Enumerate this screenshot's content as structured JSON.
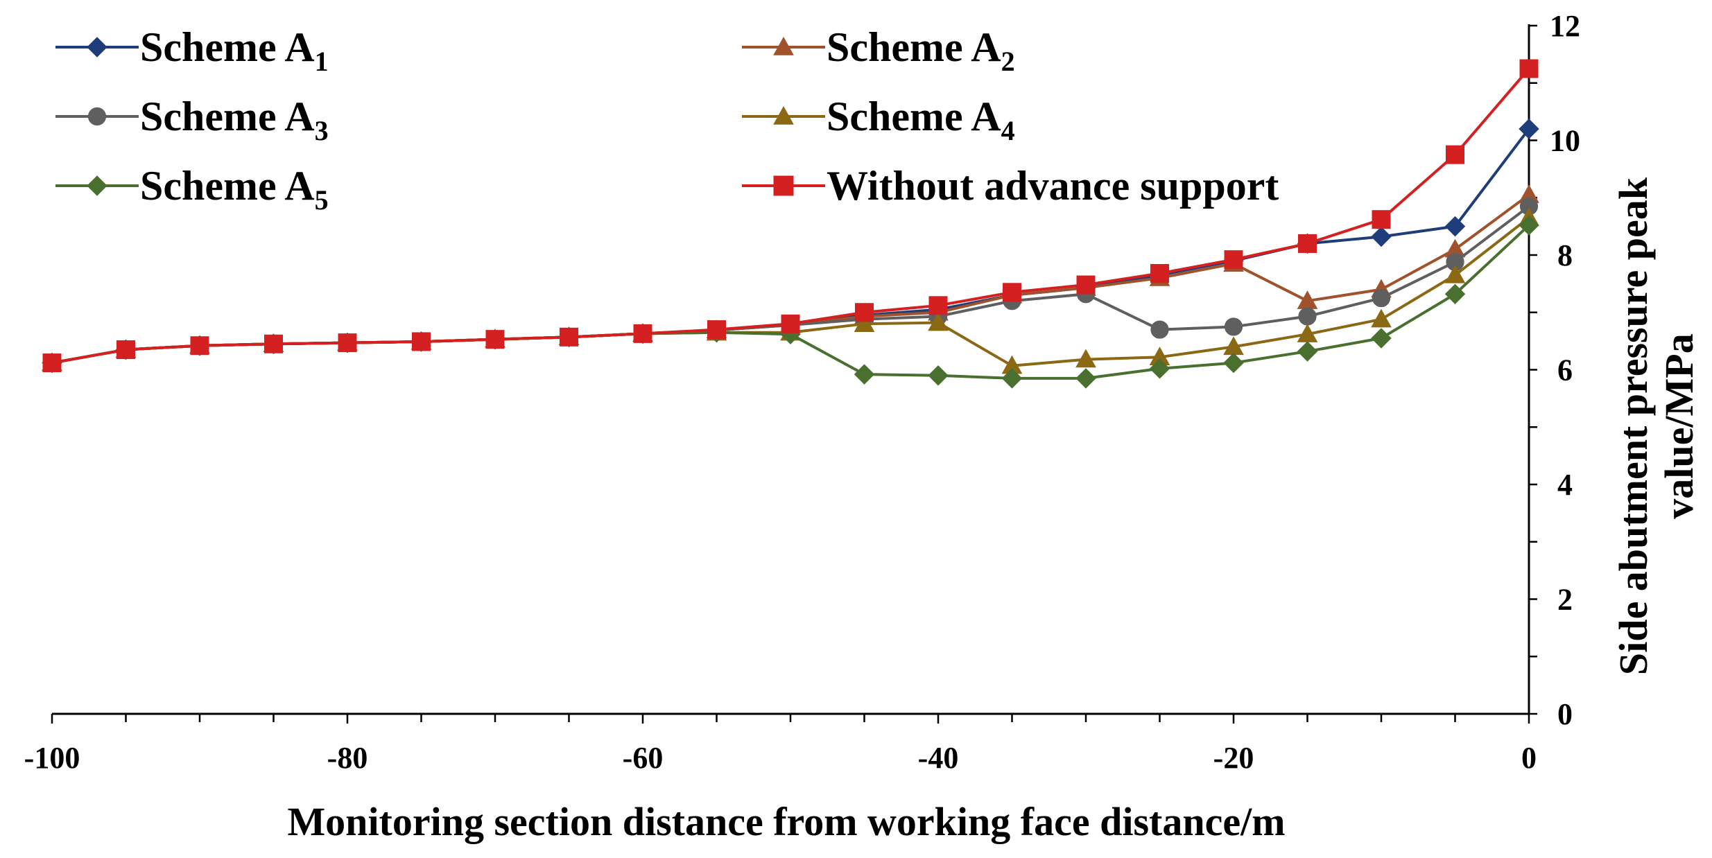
{
  "chart_data": {
    "type": "line",
    "title": "",
    "xlabel": "Monitoring section distance from working face distance/m",
    "ylabel_line1": "Side abutment pressure peak",
    "ylabel_line2": "value/MPa",
    "xlim": [
      -100,
      0
    ],
    "ylim": [
      0,
      12
    ],
    "x_ticks": [
      -100,
      -80,
      -60,
      -40,
      -20,
      0
    ],
    "y_ticks": [
      0,
      2,
      4,
      6,
      8,
      10,
      12
    ],
    "x_minor_step": 5,
    "y_minor_step": 1,
    "y_axis_side": "right",
    "grid": false,
    "legend_position": "top",
    "x": [
      -100,
      -95,
      -90,
      -85,
      -80,
      -75,
      -70,
      -65,
      -60,
      -55,
      -50,
      -45,
      -40,
      -35,
      -30,
      -25,
      -20,
      -15,
      -10,
      -5,
      0
    ],
    "series": [
      {
        "name": "Scheme A",
        "sub": "1",
        "color": "#1f3d7a",
        "marker": "diamond",
        "values": [
          6.12,
          6.35,
          6.42,
          6.45,
          6.47,
          6.49,
          6.53,
          6.57,
          6.63,
          6.69,
          6.78,
          6.95,
          7.05,
          7.3,
          7.43,
          7.65,
          7.9,
          8.2,
          8.32,
          8.5,
          10.2
        ]
      },
      {
        "name": "Scheme A",
        "sub": "2",
        "color": "#a0522d",
        "marker": "triangle",
        "values": [
          6.12,
          6.35,
          6.42,
          6.45,
          6.47,
          6.49,
          6.53,
          6.57,
          6.63,
          6.69,
          6.78,
          6.93,
          7.0,
          7.3,
          7.43,
          7.6,
          7.85,
          7.2,
          7.4,
          8.1,
          9.05
        ]
      },
      {
        "name": "Scheme A",
        "sub": "3",
        "color": "#5f5f5f",
        "marker": "circle",
        "values": [
          6.12,
          6.35,
          6.42,
          6.45,
          6.47,
          6.49,
          6.53,
          6.57,
          6.63,
          6.69,
          6.78,
          6.88,
          6.93,
          7.2,
          7.32,
          6.7,
          6.75,
          6.93,
          7.25,
          7.88,
          8.85
        ]
      },
      {
        "name": "Scheme A",
        "sub": "4",
        "color": "#8b6914",
        "marker": "triangle",
        "values": [
          6.12,
          6.35,
          6.42,
          6.45,
          6.47,
          6.49,
          6.53,
          6.57,
          6.63,
          6.65,
          6.65,
          6.8,
          6.82,
          6.07,
          6.18,
          6.22,
          6.4,
          6.62,
          6.88,
          7.65,
          8.65
        ]
      },
      {
        "name": "Scheme A",
        "sub": "5",
        "color": "#4a7030",
        "marker": "diamond",
        "values": [
          6.12,
          6.35,
          6.42,
          6.45,
          6.47,
          6.49,
          6.53,
          6.57,
          6.63,
          6.65,
          6.62,
          5.92,
          5.9,
          5.85,
          5.85,
          6.02,
          6.12,
          6.32,
          6.55,
          7.32,
          8.52
        ]
      },
      {
        "name": "Without advance support",
        "sub": "",
        "color": "#d42020",
        "marker": "square",
        "values": [
          6.12,
          6.35,
          6.42,
          6.45,
          6.47,
          6.49,
          6.53,
          6.57,
          6.63,
          6.7,
          6.8,
          7.0,
          7.12,
          7.35,
          7.48,
          7.68,
          7.92,
          8.2,
          8.62,
          9.75,
          11.25
        ]
      }
    ]
  }
}
